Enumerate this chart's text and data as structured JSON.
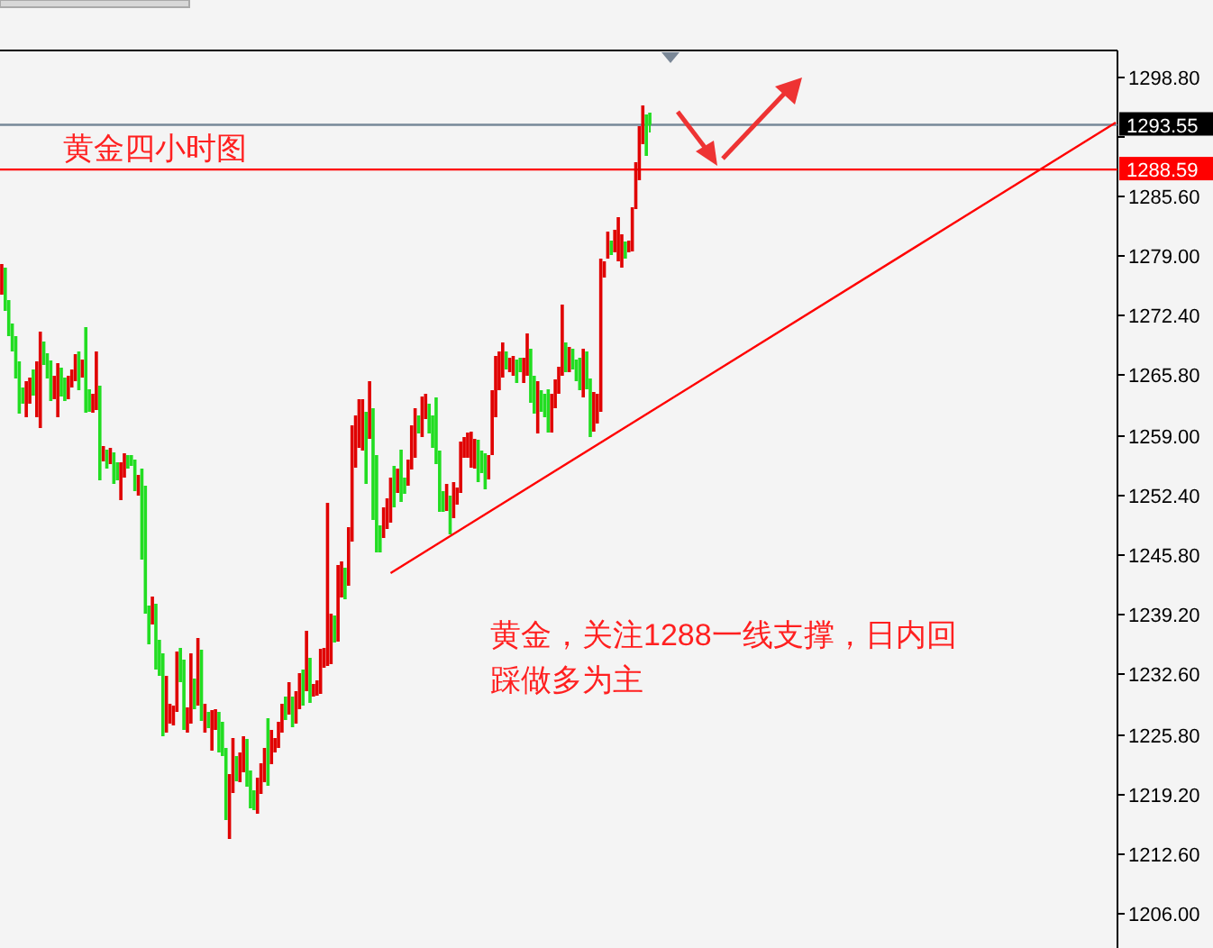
{
  "chart_data": {
    "type": "candlestick",
    "title": "黄金四小时图",
    "annotations": [
      "黄金，关注1288一线支撑，日内回踩做多为主"
    ],
    "categories": [
      null,
      null,
      null,
      null,
      null,
      null,
      null,
      null,
      null,
      null,
      null,
      null,
      null,
      null,
      null,
      null,
      null,
      null,
      null,
      null,
      null,
      null,
      null,
      null,
      null,
      null,
      null,
      null,
      null,
      null,
      null,
      null,
      null,
      null,
      null,
      null,
      null,
      null,
      null,
      null,
      null,
      null,
      null,
      null,
      null,
      null,
      null,
      null,
      null,
      null,
      null,
      null,
      null,
      null,
      null,
      null,
      null,
      null,
      null,
      null,
      null,
      null,
      null,
      null,
      null,
      null,
      null,
      null,
      null,
      null,
      null,
      null,
      null,
      null,
      null,
      null,
      null,
      null,
      null,
      null,
      null,
      null,
      null,
      null,
      null,
      null,
      null,
      null,
      null,
      null,
      null,
      null,
      null,
      null,
      null,
      null,
      null,
      null,
      null,
      null,
      null,
      null,
      null,
      null,
      null,
      null,
      null,
      null,
      null,
      null,
      null,
      null,
      null,
      null,
      null,
      null,
      null,
      null,
      null,
      null,
      null,
      null,
      null,
      null,
      null,
      null,
      null,
      null,
      null,
      null,
      null,
      null,
      null,
      null,
      null,
      null,
      null,
      null,
      null,
      null,
      null,
      null,
      null,
      null,
      null,
      null,
      null,
      null,
      null,
      null,
      null,
      null,
      null,
      null,
      null,
      null,
      null,
      null,
      null,
      null,
      null,
      null,
      null,
      null,
      null,
      null,
      null,
      null,
      null,
      null,
      null,
      null,
      null,
      null,
      null,
      null,
      null,
      null,
      null,
      null,
      null,
      null,
      null,
      null,
      null,
      null,
      null,
      null,
      null,
      null,
      null,
      null,
      null,
      null,
      null,
      null,
      null,
      null,
      null,
      null,
      null,
      null,
      null,
      null,
      null,
      null,
      null,
      null,
      null,
      null,
      null,
      null,
      null,
      null,
      null,
      null,
      null,
      null,
      null,
      null,
      null,
      null,
      null,
      null,
      null,
      null,
      null,
      null,
      null,
      null,
      null,
      null,
      null,
      null,
      null,
      null,
      null,
      null,
      null,
      null,
      null,
      null,
      null,
      null,
      null,
      null,
      null,
      null,
      null,
      null,
      null,
      null,
      null,
      null,
      null,
      null,
      null,
      null,
      null,
      null,
      null,
      null,
      null,
      null,
      null,
      null,
      null,
      null,
      null,
      null,
      null,
      null,
      null,
      null,
      null,
      null,
      null,
      null,
      null,
      null,
      null,
      null,
      null,
      null,
      null,
      null,
      null,
      null,
      null,
      null,
      null,
      null,
      null,
      null,
      null,
      null,
      null,
      null,
      null,
      null,
      null,
      null,
      null,
      null,
      null,
      null,
      null,
      null,
      null,
      null,
      null,
      null,
      null,
      null,
      null,
      null,
      null,
      null,
      null
    ],
    "ohlc": [
      [
        1274.7,
        1278.1,
        1274.7,
        1278.1
      ],
      [
        1277.7,
        1277.7,
        1272.9,
        1272.9
      ],
      [
        1274.1,
        1274.1,
        1270.1,
        1270.1
      ],
      [
        1271.5,
        1271.5,
        1268.4,
        1268.4
      ],
      [
        1270.1,
        1270.1,
        1265.4,
        1265.4
      ],
      [
        1267.3,
        1267.3,
        1261.5,
        1261.5
      ],
      [
        1264.4,
        1264.4,
        1262.6,
        1262.6
      ],
      [
        1261.1,
        1265.1,
        1261.1,
        1265.1
      ],
      [
        1262.6,
        1265.5,
        1262.6,
        1265.5
      ],
      [
        1266.4,
        1266.4,
        1263.5,
        1263.5
      ],
      [
        1261.1,
        1267.3,
        1261.1,
        1267.3
      ],
      [
        1259.9,
        1270.6,
        1259.9,
        1270.6
      ],
      [
        1269.5,
        1269.5,
        1266.9,
        1266.9
      ],
      [
        1268.2,
        1268.2,
        1265.4,
        1265.4
      ],
      [
        1267.4,
        1267.4,
        1262.9,
        1262.9
      ],
      [
        1263.1,
        1265.7,
        1263.1,
        1265.7
      ],
      [
        1261.1,
        1267.1,
        1261.1,
        1267.1
      ],
      [
        1266.6,
        1266.6,
        1263.4,
        1263.4
      ],
      [
        1265.5,
        1265.5,
        1262.9,
        1262.9
      ],
      [
        1263.1,
        1265.7,
        1263.1,
        1265.7
      ],
      [
        1264.4,
        1266.4,
        1264.4,
        1266.4
      ],
      [
        1265.1,
        1268.1,
        1265.1,
        1268.1
      ],
      [
        1268.4,
        1268.4,
        1264.1,
        1264.1
      ],
      [
        1265.5,
        1267.5,
        1265.5,
        1267.5
      ],
      [
        1271.1,
        1271.1,
        1261.6,
        1261.6
      ],
      [
        1264.2,
        1264.2,
        1261.7,
        1261.7
      ],
      [
        1261.6,
        1263.7,
        1261.6,
        1263.7
      ],
      [
        1261.9,
        1268.4,
        1261.9,
        1268.4
      ],
      [
        1264.6,
        1264.6,
        1254.1,
        1254.1
      ],
      [
        1256.2,
        1257.9,
        1256.2,
        1257.9
      ],
      [
        1257.5,
        1257.5,
        1255.4,
        1255.4
      ],
      [
        1255.9,
        1257.7,
        1255.9,
        1257.7
      ],
      [
        1257.2,
        1257.2,
        1253.7,
        1253.7
      ],
      [
        1256.1,
        1256.1,
        1254.1,
        1254.1
      ],
      [
        1251.9,
        1256.1,
        1251.9,
        1256.1
      ],
      [
        1254.4,
        1257.1,
        1254.4,
        1257.1
      ],
      [
        1256.9,
        1256.9,
        1255.4,
        1255.4
      ],
      [
        1256.9,
        1256.9,
        1255.7,
        1255.7
      ],
      [
        1256.4,
        1256.4,
        1252.9,
        1252.9
      ],
      [
        1252.4,
        1254.7,
        1252.4,
        1254.7
      ],
      [
        1255.4,
        1255.4,
        1245.3,
        1245.3
      ],
      [
        1253.5,
        1253.5,
        1239.3,
        1239.3
      ],
      [
        1240.2,
        1240.2,
        1235.9,
        1235.9
      ],
      [
        1238.1,
        1241.2,
        1238.1,
        1241.2
      ],
      [
        1240.4,
        1240.4,
        1233.1,
        1233.1
      ],
      [
        1236.4,
        1236.4,
        1232.4,
        1232.4
      ],
      [
        1234.9,
        1234.9,
        1225.7,
        1225.7
      ],
      [
        1226.1,
        1232.4,
        1226.1,
        1232.4
      ],
      [
        1227.1,
        1229.3,
        1227.1,
        1229.3
      ],
      [
        1226.9,
        1229.1,
        1226.9,
        1229.1
      ],
      [
        1228.4,
        1235.1,
        1228.4,
        1235.1
      ],
      [
        1235.5,
        1235.5,
        1231.7,
        1231.7
      ],
      [
        1234.2,
        1234.2,
        1226.4,
        1226.4
      ],
      [
        1226.1,
        1228.9,
        1226.1,
        1228.9
      ],
      [
        1227.1,
        1234.9,
        1227.1,
        1234.9
      ],
      [
        1232.1,
        1232.1,
        1228.7,
        1228.7
      ],
      [
        1229.1,
        1236.6,
        1229.1,
        1236.6
      ],
      [
        1235.3,
        1235.3,
        1227.4,
        1227.4
      ],
      [
        1226.1,
        1229.3,
        1226.1,
        1229.3
      ],
      [
        1228.4,
        1228.4,
        1226.6,
        1226.6
      ],
      [
        1224.1,
        1228.6,
        1224.1,
        1228.6
      ],
      [
        1226.4,
        1228.7,
        1226.4,
        1228.7
      ],
      [
        1228.4,
        1228.4,
        1223.9,
        1223.9
      ],
      [
        1227.3,
        1227.3,
        1223.5,
        1223.5
      ],
      [
        1224.4,
        1224.4,
        1216.4,
        1216.4
      ],
      [
        1214.3,
        1221.5,
        1214.3,
        1221.5
      ],
      [
        1219.4,
        1225.5,
        1219.4,
        1225.5
      ],
      [
        1223.5,
        1223.5,
        1220.7,
        1220.7
      ],
      [
        1220.6,
        1223.9,
        1220.6,
        1223.9
      ],
      [
        1221.7,
        1225.7,
        1221.7,
        1225.7
      ],
      [
        1225.4,
        1225.4,
        1220.1,
        1220.1
      ],
      [
        1221.9,
        1221.9,
        1217.7,
        1217.7
      ],
      [
        1219.7,
        1219.7,
        1217.5,
        1217.5
      ],
      [
        1217.1,
        1221.1,
        1217.1,
        1221.1
      ],
      [
        1219.3,
        1222.7,
        1219.3,
        1222.7
      ],
      [
        1220.6,
        1224.4,
        1220.6,
        1224.4
      ],
      [
        1227.7,
        1227.7,
        1220.2,
        1220.2
      ],
      [
        1222.6,
        1226.4,
        1222.6,
        1226.4
      ],
      [
        1223.9,
        1225.5,
        1223.9,
        1225.5
      ],
      [
        1224.4,
        1227.3,
        1224.4,
        1227.3
      ],
      [
        1226.1,
        1229.3,
        1226.1,
        1229.3
      ],
      [
        1230.1,
        1230.1,
        1227.5,
        1227.5
      ],
      [
        1228.1,
        1231.7,
        1228.1,
        1231.7
      ],
      [
        1230.1,
        1230.1,
        1226.7,
        1226.7
      ],
      [
        1227.1,
        1230.7,
        1227.1,
        1230.7
      ],
      [
        1228.7,
        1232.7,
        1228.7,
        1232.7
      ],
      [
        1233.1,
        1233.1,
        1229.1,
        1229.1
      ],
      [
        1230.7,
        1237.4,
        1230.7,
        1237.4
      ],
      [
        1234.4,
        1234.4,
        1229.4,
        1229.4
      ],
      [
        1230.1,
        1231.5,
        1230.1,
        1231.5
      ],
      [
        1230.2,
        1231.9,
        1230.2,
        1231.9
      ],
      [
        1230.4,
        1235.4,
        1230.4,
        1235.4
      ],
      [
        1233.3,
        1235.5,
        1233.3,
        1235.5
      ],
      [
        1233.5,
        1251.6,
        1233.5,
        1251.6
      ],
      [
        1233.7,
        1239.3,
        1233.7,
        1239.3
      ],
      [
        1239.1,
        1239.1,
        1236.1,
        1236.1
      ],
      [
        1236.2,
        1244.7,
        1236.2,
        1244.7
      ],
      [
        1241.1,
        1245.1,
        1241.1,
        1245.1
      ],
      [
        1244.4,
        1244.4,
        1240.9,
        1240.9
      ],
      [
        1242.4,
        1248.9,
        1242.4,
        1248.9
      ],
      [
        1247.3,
        1260.2,
        1247.3,
        1260.2
      ],
      [
        1255.5,
        1261.3,
        1255.5,
        1261.3
      ],
      [
        1257.7,
        1263.1,
        1257.7,
        1263.1
      ],
      [
        1257.4,
        1263.1,
        1257.4,
        1263.1
      ],
      [
        1261.7,
        1261.7,
        1253.7,
        1253.7
      ],
      [
        1258.7,
        1265.1,
        1258.7,
        1265.1
      ],
      [
        1262.1,
        1262.1,
        1249.7,
        1249.7
      ],
      [
        1256.9,
        1256.9,
        1246.1,
        1246.1
      ],
      [
        1249.1,
        1249.1,
        1246.1,
        1246.1
      ],
      [
        1247.7,
        1251.1,
        1247.7,
        1251.1
      ],
      [
        1248.7,
        1252.1,
        1248.7,
        1252.1
      ],
      [
        1249.4,
        1254.4,
        1249.4,
        1254.4
      ],
      [
        1255.7,
        1255.7,
        1251.1,
        1251.1
      ],
      [
        1252.7,
        1255.4,
        1252.7,
        1255.4
      ],
      [
        1257.5,
        1257.5,
        1251.7,
        1251.7
      ],
      [
        1254.4,
        1254.4,
        1252.6,
        1252.6
      ],
      [
        1253.5,
        1256.4,
        1253.5,
        1256.4
      ],
      [
        1255.3,
        1260.2,
        1255.3,
        1260.2
      ],
      [
        1256.6,
        1262.1,
        1256.6,
        1262.1
      ],
      [
        1261.3,
        1261.3,
        1259.3,
        1259.3
      ],
      [
        1258.9,
        1263.4,
        1258.9,
        1263.4
      ],
      [
        1260.9,
        1263.7,
        1260.9,
        1263.7
      ],
      [
        1262.6,
        1262.6,
        1259.3,
        1259.3
      ],
      [
        1261.3,
        1261.3,
        1257.7,
        1257.7
      ],
      [
        1263.3,
        1263.3,
        1255.9,
        1255.9
      ],
      [
        1257.4,
        1257.4,
        1250.6,
        1250.6
      ],
      [
        1252.9,
        1252.9,
        1250.6,
        1250.6
      ],
      [
        1250.7,
        1253.7,
        1250.7,
        1253.7
      ],
      [
        1252.4,
        1252.4,
        1248.1,
        1248.1
      ],
      [
        1249.9,
        1253.9,
        1249.9,
        1253.9
      ],
      [
        1251.4,
        1253.3,
        1251.4,
        1253.3
      ],
      [
        1252.7,
        1258.4,
        1252.7,
        1258.4
      ],
      [
        1256.6,
        1258.9,
        1256.6,
        1258.9
      ],
      [
        1256.6,
        1259.4,
        1256.6,
        1259.4
      ],
      [
        1255.5,
        1259.5,
        1255.5,
        1259.5
      ],
      [
        1255.4,
        1258.7,
        1255.4,
        1258.7
      ],
      [
        1258.6,
        1258.6,
        1253.9,
        1253.9
      ],
      [
        1257.4,
        1257.4,
        1254.9,
        1254.9
      ],
      [
        1257.1,
        1257.1,
        1253.1,
        1253.1
      ],
      [
        1254.2,
        1256.9,
        1254.2,
        1256.9
      ],
      [
        1256.9,
        1264.1,
        1256.9,
        1264.1
      ],
      [
        1261.1,
        1267.9,
        1261.1,
        1267.9
      ],
      [
        1264.1,
        1268.4,
        1264.1,
        1268.4
      ],
      [
        1265.5,
        1269.4,
        1265.5,
        1269.4
      ],
      [
        1268.4,
        1268.4,
        1266.4,
        1266.4
      ],
      [
        1266.1,
        1267.7,
        1266.1,
        1267.7
      ],
      [
        1265.7,
        1267.9,
        1265.7,
        1267.9
      ],
      [
        1267.5,
        1267.5,
        1264.9,
        1264.9
      ],
      [
        1267.7,
        1267.7,
        1266.1,
        1266.1
      ],
      [
        1264.9,
        1267.7,
        1264.9,
        1267.7
      ],
      [
        1265.7,
        1270.4,
        1265.7,
        1270.4
      ],
      [
        1268.7,
        1268.7,
        1262.7,
        1262.7
      ],
      [
        1265.7,
        1265.7,
        1261.5,
        1261.5
      ],
      [
        1259.3,
        1265.1,
        1259.3,
        1265.1
      ],
      [
        1264.1,
        1264.1,
        1261.7,
        1261.7
      ],
      [
        1263.7,
        1263.7,
        1261.1,
        1261.1
      ],
      [
        1264.2,
        1264.2,
        1259.4,
        1259.4
      ],
      [
        1259.4,
        1263.7,
        1259.4,
        1263.7
      ],
      [
        1262.1,
        1265.3,
        1262.1,
        1265.3
      ],
      [
        1263.7,
        1266.7,
        1263.7,
        1266.7
      ],
      [
        1265.7,
        1273.6,
        1265.7,
        1273.6
      ],
      [
        1269.4,
        1269.4,
        1266.1,
        1266.1
      ],
      [
        1266.1,
        1268.9,
        1266.1,
        1268.9
      ],
      [
        1268.7,
        1268.7,
        1266.4,
        1266.4
      ],
      [
        1267.5,
        1267.5,
        1265.1,
        1265.1
      ],
      [
        1267.7,
        1267.7,
        1264.1,
        1264.1
      ],
      [
        1263.3,
        1268.7,
        1263.3,
        1268.7
      ],
      [
        1268.4,
        1268.4,
        1264.2,
        1264.2
      ],
      [
        1265.4,
        1265.4,
        1258.9,
        1258.9
      ],
      [
        1259.5,
        1263.9,
        1259.5,
        1263.9
      ],
      [
        1260.4,
        1263.7,
        1260.4,
        1263.7
      ],
      [
        1261.7,
        1278.7,
        1261.7,
        1278.7
      ],
      [
        1276.6,
        1278.4,
        1276.6,
        1278.4
      ],
      [
        1278.7,
        1281.7,
        1278.7,
        1281.7
      ],
      [
        1280.7,
        1280.7,
        1279.1,
        1279.1
      ],
      [
        1279.4,
        1281.9,
        1279.4,
        1281.9
      ],
      [
        1278.4,
        1283.3,
        1278.4,
        1283.3
      ],
      [
        1277.7,
        1281.4,
        1277.7,
        1281.4
      ],
      [
        1280.6,
        1280.6,
        1278.7,
        1278.7
      ],
      [
        1279.4,
        1280.7,
        1279.4,
        1280.7
      ],
      [
        1279.5,
        1284.4,
        1279.5,
        1284.4
      ],
      [
        1284.2,
        1289.4,
        1284.2,
        1289.4
      ],
      [
        1287.4,
        1293.4,
        1287.4,
        1293.4
      ],
      [
        1291.4,
        1295.7,
        1291.4,
        1295.7
      ],
      [
        1294.7,
        1294.7,
        1290.1,
        1290.1
      ],
      [
        1294.9,
        1294.9,
        1292.7,
        1293.55
      ],
      null,
      null,
      null,
      null,
      null,
      null,
      null,
      null,
      null,
      null,
      null,
      null,
      null,
      null,
      null,
      null,
      null,
      null,
      null,
      null,
      null,
      null,
      null,
      null,
      null,
      null,
      null,
      null,
      null,
      null,
      null,
      null,
      null,
      null,
      null,
      null,
      null,
      null,
      null,
      null,
      null,
      null,
      null,
      null,
      null,
      null,
      null,
      null,
      null,
      null,
      null,
      null,
      null,
      null,
      null,
      null,
      null,
      null,
      null,
      null,
      null,
      null,
      null,
      null,
      null,
      null,
      null,
      null,
      null,
      null,
      null,
      null,
      null,
      null,
      null,
      null,
      null,
      null,
      null,
      null,
      null,
      null,
      null,
      null,
      null,
      null,
      null,
      null,
      null,
      null,
      null,
      null,
      null,
      null,
      null,
      null,
      null,
      null,
      null,
      null,
      null,
      null,
      null,
      null,
      null,
      null,
      null,
      null,
      null,
      null,
      null,
      null,
      null,
      null,
      null,
      null,
      null,
      null,
      null,
      null,
      null,
      null,
      null,
      null,
      null,
      null,
      null,
      null,
      null,
      null,
      null,
      null,
      null
    ],
    "series": [
      {
        "type": "line",
        "color": "#ff0000",
        "values": [
          null,
          null,
          null,
          null,
          null,
          null,
          null,
          null,
          null,
          null,
          null,
          null,
          null,
          null,
          null,
          null,
          null,
          null,
          null,
          null,
          null,
          null,
          null,
          null,
          null,
          null,
          null,
          null,
          null,
          null,
          null,
          null,
          null,
          null,
          null,
          null,
          null,
          null,
          null,
          null,
          null,
          null,
          null,
          null,
          null,
          null,
          null,
          null,
          null,
          null,
          null,
          null,
          null,
          null,
          null,
          null,
          null,
          null,
          null,
          null,
          null,
          null,
          null,
          null,
          null,
          null,
          null,
          null,
          null,
          null,
          null,
          null,
          null,
          null,
          null,
          null,
          null,
          null,
          null,
          null,
          null,
          null,
          null,
          null,
          null,
          null,
          null,
          null,
          null,
          null,
          null,
          null,
          null,
          null,
          null,
          null,
          null,
          null,
          null,
          null,
          null,
          null,
          null,
          null,
          null,
          null,
          null,
          null,
          null,
          null,
          null,
          1243.8,
          null,
          null,
          null,
          null,
          null,
          null,
          null,
          null,
          null,
          null,
          null,
          null,
          null,
          null,
          null,
          null,
          null,
          null,
          null,
          null,
          null,
          null,
          null,
          null,
          null,
          null,
          null,
          null,
          null,
          null,
          null,
          null,
          null,
          null,
          null,
          null,
          null,
          null,
          null,
          null,
          null,
          null,
          null,
          null,
          null,
          null,
          null,
          null,
          null,
          null,
          null,
          null,
          null,
          null,
          null,
          null,
          null,
          null,
          null,
          null,
          null,
          null,
          null,
          null,
          null,
          null,
          null,
          null,
          null,
          null,
          null,
          null,
          null,
          null,
          null,
          null,
          null,
          null,
          null,
          null,
          null,
          null,
          null,
          null,
          null,
          null,
          null,
          null,
          null,
          null,
          null,
          null,
          null,
          null,
          null,
          null,
          null,
          null,
          null,
          null,
          null,
          null,
          null,
          null,
          null,
          null,
          null,
          null,
          null,
          null,
          null,
          null,
          null,
          null,
          null,
          null,
          null,
          null,
          null,
          null,
          null,
          null,
          null,
          null,
          null,
          null,
          null,
          null,
          null,
          null,
          null,
          null,
          null,
          null,
          null,
          null,
          null,
          null,
          null,
          null,
          null,
          null,
          null,
          null,
          null,
          null,
          null,
          null,
          null,
          null,
          null,
          null,
          null,
          null,
          null,
          null,
          null,
          null,
          null,
          null,
          null,
          null,
          null,
          null,
          null,
          null,
          null,
          null,
          null,
          null,
          null,
          null,
          null,
          null,
          null,
          null,
          null,
          null,
          null,
          null,
          null,
          null,
          null,
          null,
          null,
          null,
          null,
          null,
          null,
          null,
          null,
          null,
          null,
          null,
          null,
          null,
          null,
          null,
          null,
          null,
          null,
          null,
          null,
          null,
          null,
          null,
          1293.8
        ]
      }
    ],
    "ref_lines": [
      {
        "axis": "y",
        "value": 1293.55,
        "label": "1293.55",
        "color": "#778899"
      },
      {
        "axis": "y",
        "value": 1288.59,
        "label": "1288.59",
        "color": "#ff0000"
      }
    ],
    "ylim": [
      1202.2,
      1301.8
    ],
    "yticks": [
      {
        "value": 1298.8,
        "label": "1298.80"
      },
      {
        "value": 1292.2,
        "label": null
      },
      {
        "value": 1285.6,
        "label": "1285.60"
      },
      {
        "value": 1279,
        "label": "1279.00"
      },
      {
        "value": 1272.4,
        "label": "1272.40"
      },
      {
        "value": 1265.8,
        "label": "1265.80"
      },
      {
        "value": 1259,
        "label": "1259.00"
      },
      {
        "value": 1252.4,
        "label": "1252.40"
      },
      {
        "value": 1245.8,
        "label": "1245.80"
      },
      {
        "value": 1239.2,
        "label": "1239.20"
      },
      {
        "value": 1232.6,
        "label": "1232.60"
      },
      {
        "value": 1225.8,
        "label": "1225.80"
      },
      {
        "value": 1219.2,
        "label": "1219.20"
      },
      {
        "value": 1212.6,
        "label": "1212.60"
      },
      {
        "value": 1206,
        "label": "1206.00"
      }
    ],
    "tick_labels": "y"
  }
}
